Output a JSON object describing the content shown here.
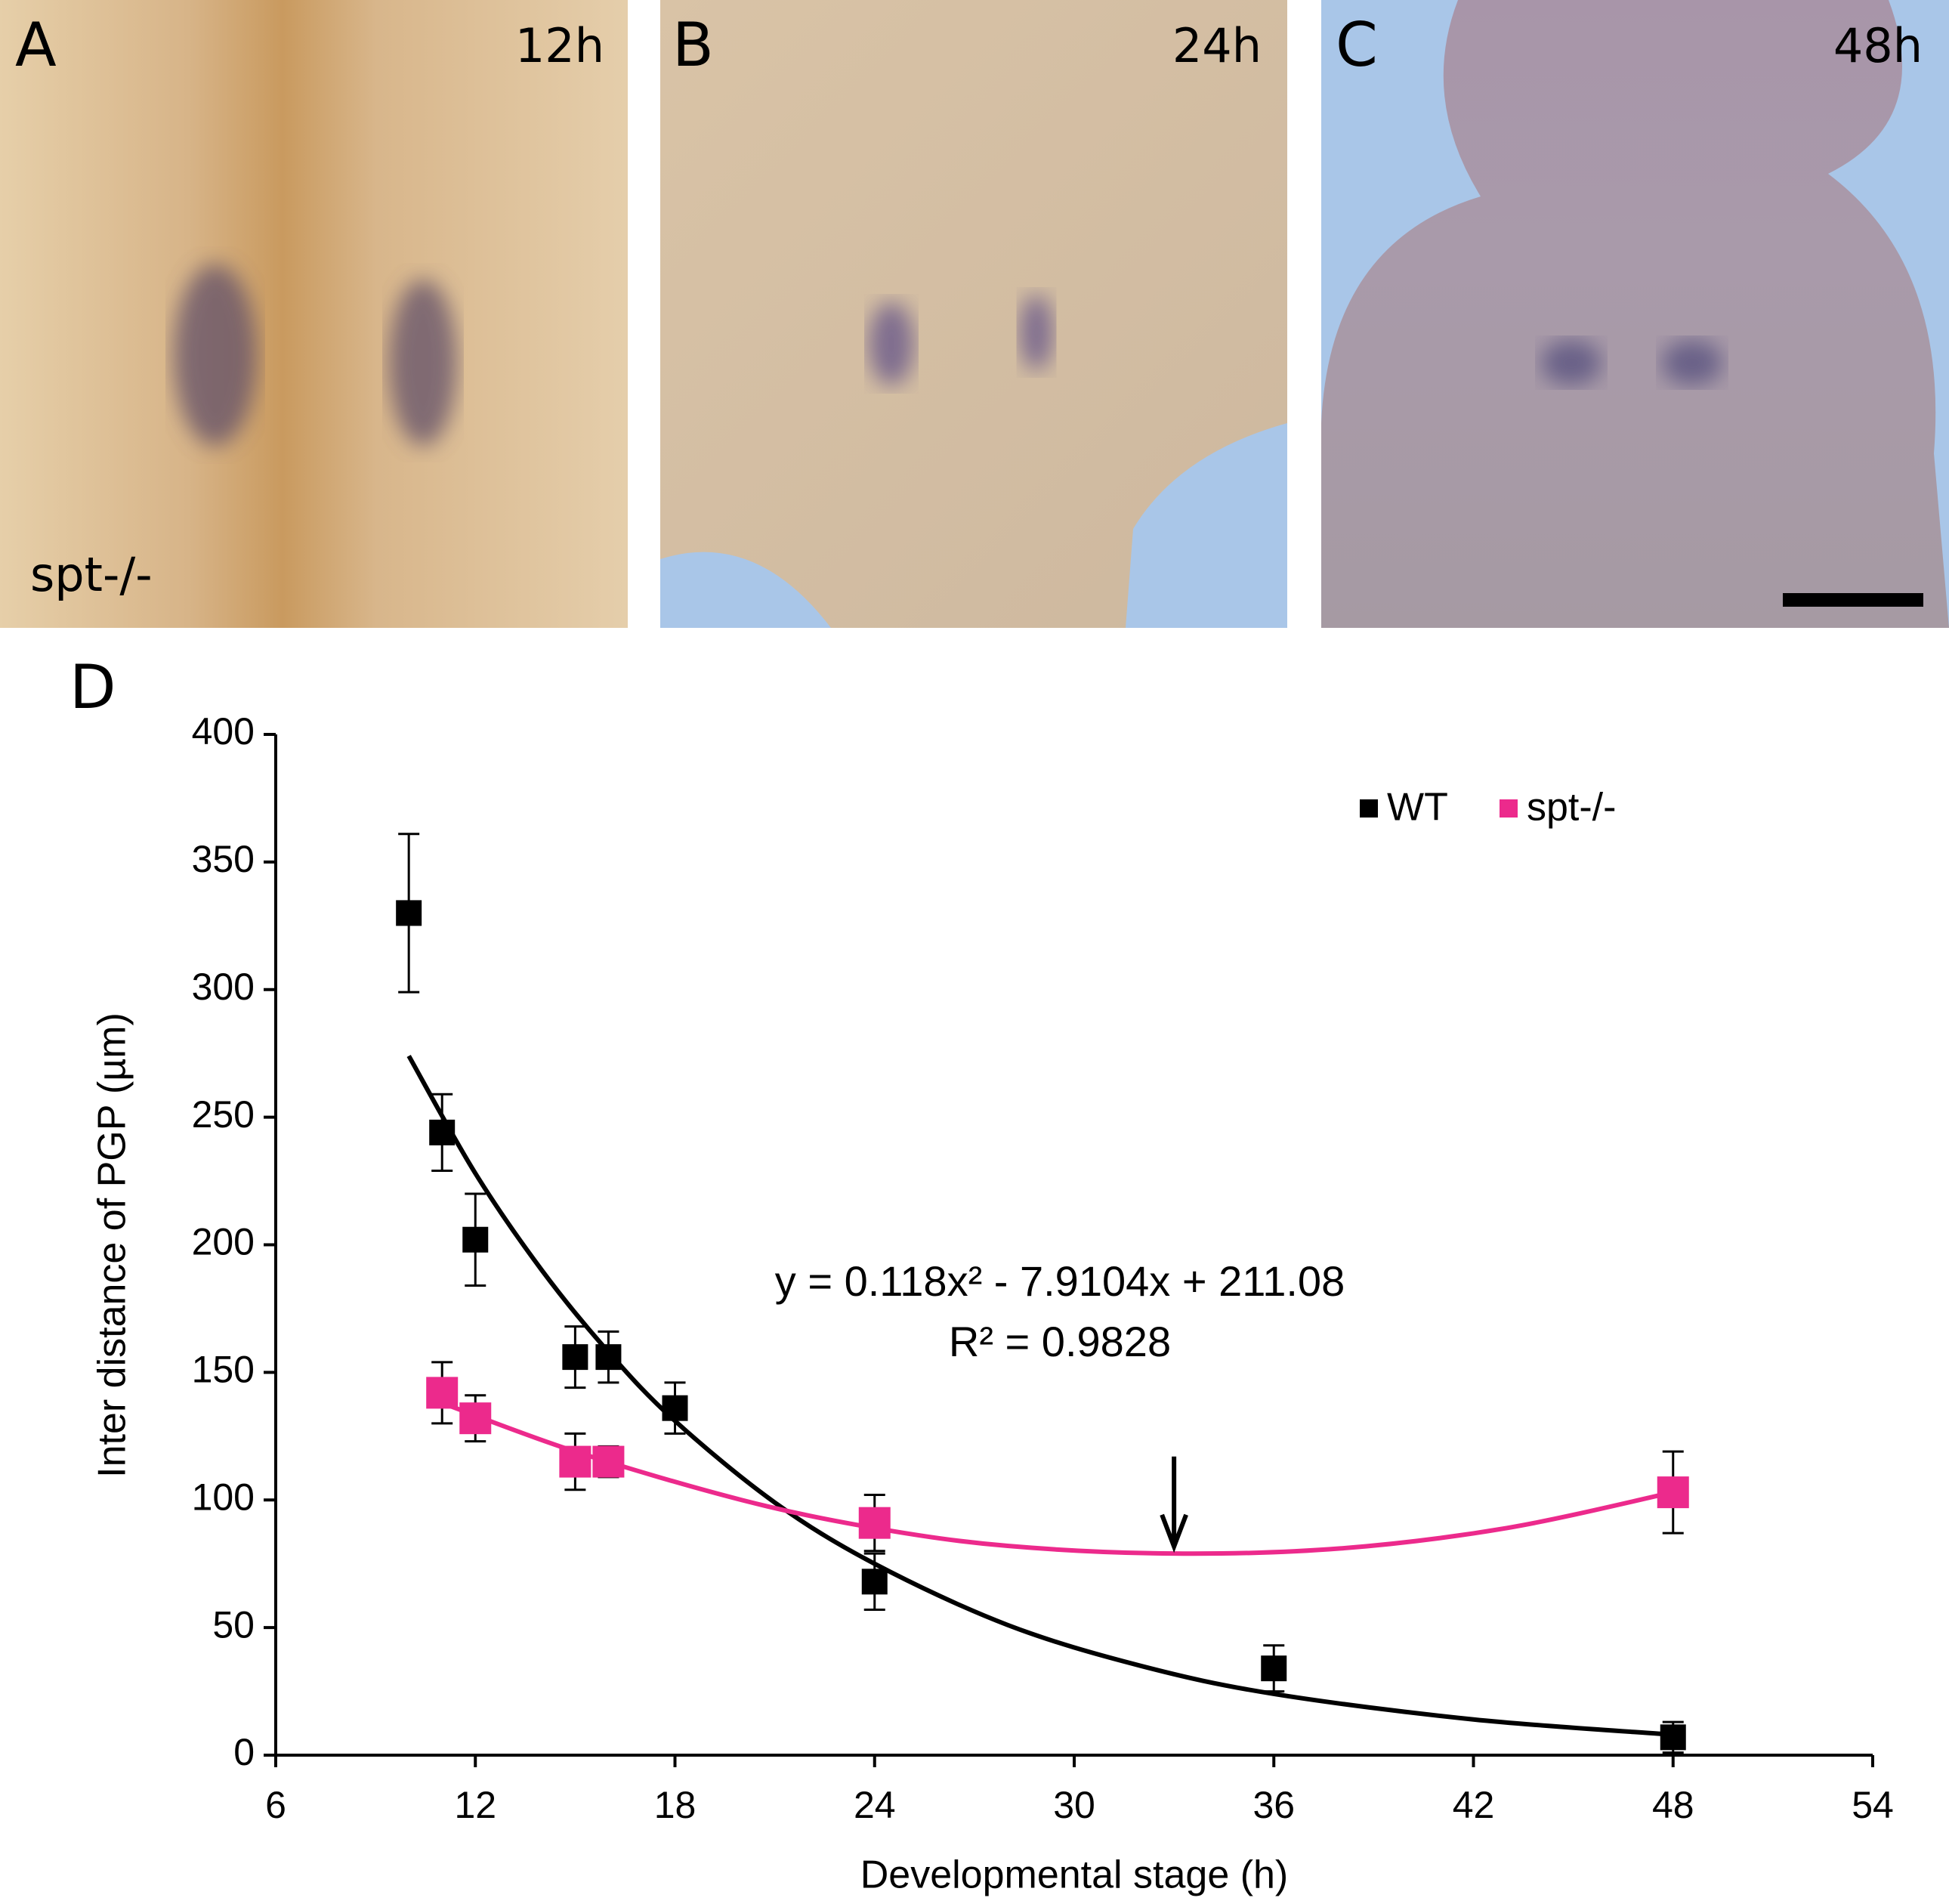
{
  "panels": [
    {
      "label": "A",
      "time": "12h",
      "note": "spt-/-"
    },
    {
      "label": "B",
      "time": "24h"
    },
    {
      "label": "C",
      "time": "48h"
    }
  ],
  "chart_data": {
    "type": "scatter",
    "panel_label": "D",
    "x_label": "Developmental stage (h)",
    "y_label": "Inter distance of PGP (µm)",
    "equation": "y = 0.118x² - 7.9104x + 211.08",
    "r_squared": "R² = 0.9828",
    "xlim": [
      6,
      54
    ],
    "xticks": [
      6,
      12,
      18,
      24,
      30,
      36,
      42,
      48,
      54
    ],
    "ylim": [
      0,
      400
    ],
    "yticks": [
      0,
      50,
      100,
      150,
      200,
      250,
      300,
      350,
      400
    ],
    "series": [
      {
        "name": "WT",
        "color": "#000000",
        "x": [
          10,
          11,
          12,
          15,
          16,
          18,
          24,
          36,
          48
        ],
        "values": [
          330,
          244,
          202,
          156,
          156,
          136,
          68,
          34,
          7
        ],
        "errors": [
          31,
          15,
          18,
          12,
          10,
          10,
          11,
          9,
          6
        ]
      },
      {
        "name": "spt-/-",
        "color": "#ec2a8c",
        "x": [
          11,
          12,
          15,
          16,
          24,
          48
        ],
        "values": [
          142,
          132,
          115,
          115,
          91,
          103
        ],
        "errors": [
          12,
          9,
          11,
          6,
          11,
          16
        ]
      }
    ],
    "trendlines": [
      {
        "color": "#000000",
        "x": [
          10,
          12,
          14,
          16,
          18,
          21,
          24,
          28,
          32,
          36,
          42,
          48
        ],
        "y": [
          274,
          228,
          190,
          158,
          131,
          99,
          75,
          51,
          35,
          24,
          14,
          8
        ]
      },
      {
        "color": "#ec2a8c",
        "x": [
          11,
          15,
          20,
          24,
          28,
          33,
          38,
          43,
          48
        ],
        "y": [
          138,
          119,
          100,
          89,
          82,
          79,
          81,
          89,
          103
        ]
      }
    ],
    "arrow": {
      "x": 33,
      "y": 80
    }
  }
}
